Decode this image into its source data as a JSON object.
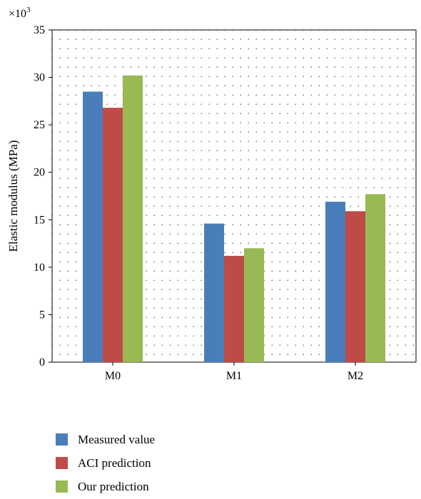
{
  "chart_data": {
    "type": "bar",
    "categories": [
      "M0",
      "M1",
      "M2"
    ],
    "series": [
      {
        "name": "Measured value",
        "color": "#4a7ebb",
        "values": [
          28.5,
          14.6,
          16.9
        ]
      },
      {
        "name": "ACI prediction",
        "color": "#be4b48",
        "values": [
          26.8,
          11.2,
          15.9
        ]
      },
      {
        "name": "Our prediction",
        "color": "#98b954",
        "values": [
          30.2,
          12.0,
          17.7
        ]
      }
    ],
    "title": "",
    "xlabel": "",
    "ylabel": "Elastic modulus (MPa)",
    "y_multiplier_base": "×10",
    "y_multiplier_exp": "3",
    "ylim": [
      0,
      35
    ],
    "yticks": [
      0,
      5,
      10,
      15,
      20,
      25,
      30,
      35
    ],
    "grid": true,
    "legend_position": "bottom"
  }
}
